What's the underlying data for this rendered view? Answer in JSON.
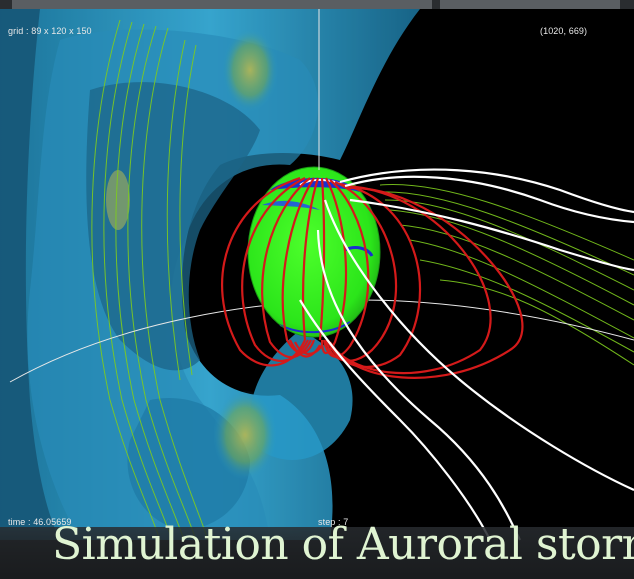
{
  "viewer": {
    "grid_label": "grid : 89 x 120 x 150",
    "coord_readout": "(1020, 669)",
    "time_label": "time : 46.05659",
    "step_label": "step : 7"
  },
  "caption": "Simulation of Auroral storm",
  "colors": {
    "field_line_closed": "#d41a1a",
    "field_line_open": "#ffffff",
    "earth_surface": "#33ff1a",
    "contours": "#7ecb1f",
    "plasma_volume": "#2aa6d9"
  }
}
